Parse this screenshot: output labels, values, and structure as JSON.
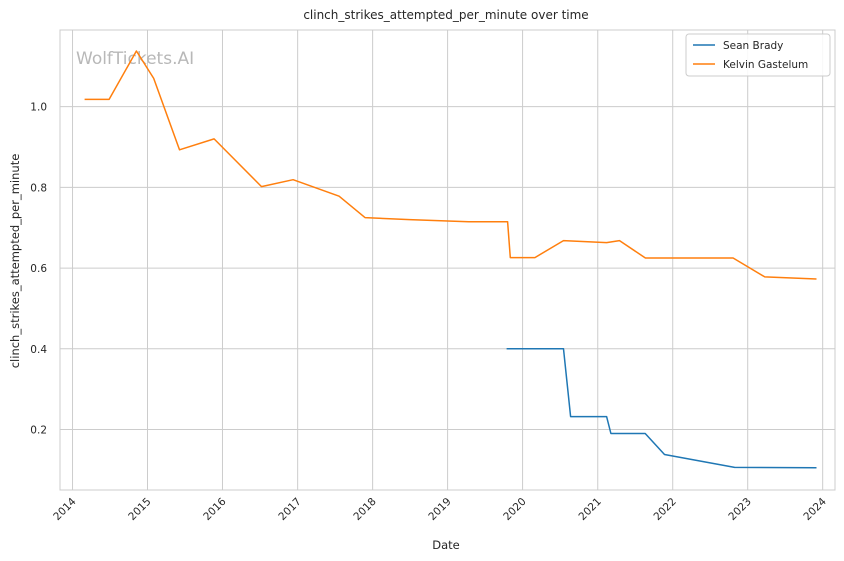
{
  "chart_data": {
    "type": "line",
    "title": "clinch_strikes_attempted_per_minute over time",
    "xlabel": "Date",
    "ylabel": "clinch_strikes_attempted_per_minute",
    "watermark": "WolfTickets.AI",
    "xlim": [
      "2013-11-01",
      "2024-03-01"
    ],
    "ylim": [
      0.05,
      1.19
    ],
    "x_ticks": [
      "2014",
      "2015",
      "2016",
      "2017",
      "2018",
      "2019",
      "2020",
      "2021",
      "2022",
      "2023",
      "2024"
    ],
    "y_ticks": [
      "0.2",
      "0.4",
      "0.6",
      "0.8",
      "1.0"
    ],
    "grid": true,
    "legend_position": "top-right",
    "series": [
      {
        "name": "Sean Brady",
        "color": "#1f77b4",
        "points": [
          [
            "2019-10-15",
            0.4
          ],
          [
            "2020-07-18",
            0.4
          ],
          [
            "2020-08-22",
            0.232
          ],
          [
            "2021-02-13",
            0.232
          ],
          [
            "2021-03-06",
            0.19
          ],
          [
            "2021-08-20",
            0.19
          ],
          [
            "2021-11-22",
            0.138
          ],
          [
            "2022-10-29",
            0.106
          ],
          [
            "2023-12-02",
            0.105
          ]
        ]
      },
      {
        "name": "Kelvin Gastelum",
        "color": "#ff7f0e",
        "points": [
          [
            "2014-03-01",
            1.018
          ],
          [
            "2014-06-28",
            1.018
          ],
          [
            "2014-11-08",
            1.138
          ],
          [
            "2015-01-31",
            1.07
          ],
          [
            "2015-06-06",
            0.893
          ],
          [
            "2015-11-21",
            0.92
          ],
          [
            "2016-07-09",
            0.802
          ],
          [
            "2016-12-10",
            0.819
          ],
          [
            "2017-07-22",
            0.778
          ],
          [
            "2017-11-25",
            0.725
          ],
          [
            "2018-06-30",
            0.72
          ],
          [
            "2019-04-13",
            0.715
          ],
          [
            "2019-10-20",
            0.715
          ],
          [
            "2019-11-02",
            0.626
          ],
          [
            "2020-03-01",
            0.626
          ],
          [
            "2020-07-18",
            0.668
          ],
          [
            "2021-02-13",
            0.663
          ],
          [
            "2021-04-17",
            0.668
          ],
          [
            "2021-08-21",
            0.625
          ],
          [
            "2022-10-22",
            0.625
          ],
          [
            "2023-03-25",
            0.578
          ],
          [
            "2023-12-02",
            0.573
          ]
        ]
      }
    ]
  }
}
